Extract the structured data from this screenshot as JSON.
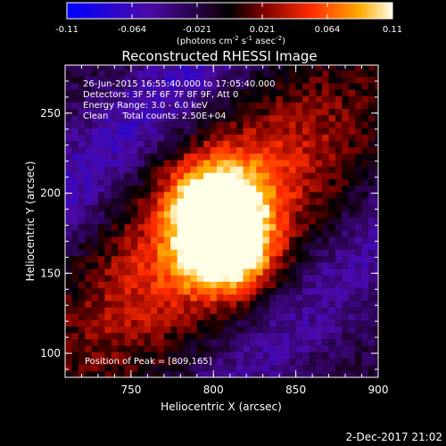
{
  "chart_data": {
    "type": "heatmap",
    "title": "Reconstructed RHESSI Image",
    "xlabel": "Heliocentric X (arcsec)",
    "ylabel": "Heliocentric Y (arcsec)",
    "xlim": [
      710,
      900
    ],
    "ylim": [
      85,
      280
    ],
    "x_ticks": [
      750,
      800,
      850,
      900
    ],
    "y_ticks": [
      100,
      150,
      200,
      250
    ],
    "colorbar": {
      "min": -0.11,
      "max": 0.11,
      "ticks": [
        "-0.11",
        "-0.064",
        "-0.021",
        "0.021",
        "0.064",
        "0.11"
      ],
      "unit_parts": [
        "(photons cm",
        "-2",
        " s",
        "-1",
        " asec",
        "-2",
        ")"
      ]
    },
    "annotations": [
      "26-Jun-2015 16:55:40.000 to 17:05:40.000",
      "Detectors: 3F 5F 6F 7F 8F 9F, Att 0",
      "Energy Range: 3.0 - 6.0 keV",
      "Clean     Total counts: 2.50E+04"
    ],
    "peak_label": "Position of Peak = [809,165]",
    "peak": {
      "x": 809,
      "y": 165,
      "value": 0.11
    },
    "secondary_peak": {
      "x": 800,
      "y": 195,
      "value": 0.095
    },
    "background_level": -0.02,
    "negative_band_level": -0.065,
    "grid": false
  },
  "footer": {
    "date": "2-Dec-2017 21:02"
  }
}
